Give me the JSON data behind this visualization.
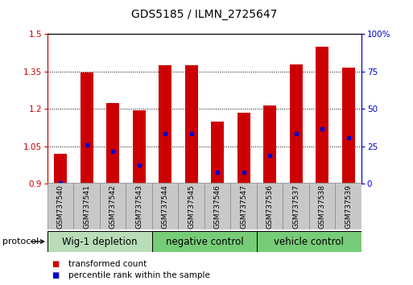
{
  "title": "GDS5185 / ILMN_2725647",
  "samples": [
    "GSM737540",
    "GSM737541",
    "GSM737542",
    "GSM737543",
    "GSM737544",
    "GSM737545",
    "GSM737546",
    "GSM737547",
    "GSM737536",
    "GSM737537",
    "GSM737538",
    "GSM737539"
  ],
  "bar_tops": [
    1.02,
    1.345,
    1.225,
    1.195,
    1.375,
    1.375,
    1.15,
    1.185,
    1.215,
    1.38,
    1.45,
    1.365
  ],
  "bar_base": 0.9,
  "blue_positions": [
    0.905,
    1.055,
    1.03,
    0.975,
    1.1,
    1.1,
    0.945,
    0.945,
    1.015,
    1.1,
    1.12,
    1.085
  ],
  "ylim_left": [
    0.9,
    1.5
  ],
  "ylim_right": [
    0,
    100
  ],
  "yticks_left": [
    0.9,
    1.05,
    1.2,
    1.35,
    1.5
  ],
  "yticks_right": [
    0,
    25,
    50,
    75,
    100
  ],
  "bar_color": "#cc0000",
  "blue_color": "#0000cc",
  "group_labels": [
    "Wig-1 depletion",
    "negative control",
    "vehicle control"
  ],
  "group_ranges": [
    [
      0,
      3
    ],
    [
      4,
      7
    ],
    [
      8,
      11
    ]
  ],
  "group_colors_light": "#b8ddb8",
  "group_colors_mid": "#77cc77",
  "xlabel_color_left": "#cc0000",
  "xlabel_color_right": "#0000cc",
  "bar_width": 0.5,
  "protocol_label": "protocol",
  "legend_red": "transformed count",
  "legend_blue": "percentile rank within the sample",
  "tick_label_fontsize": 6.5,
  "title_fontsize": 10,
  "group_label_fontsize": 8.5
}
